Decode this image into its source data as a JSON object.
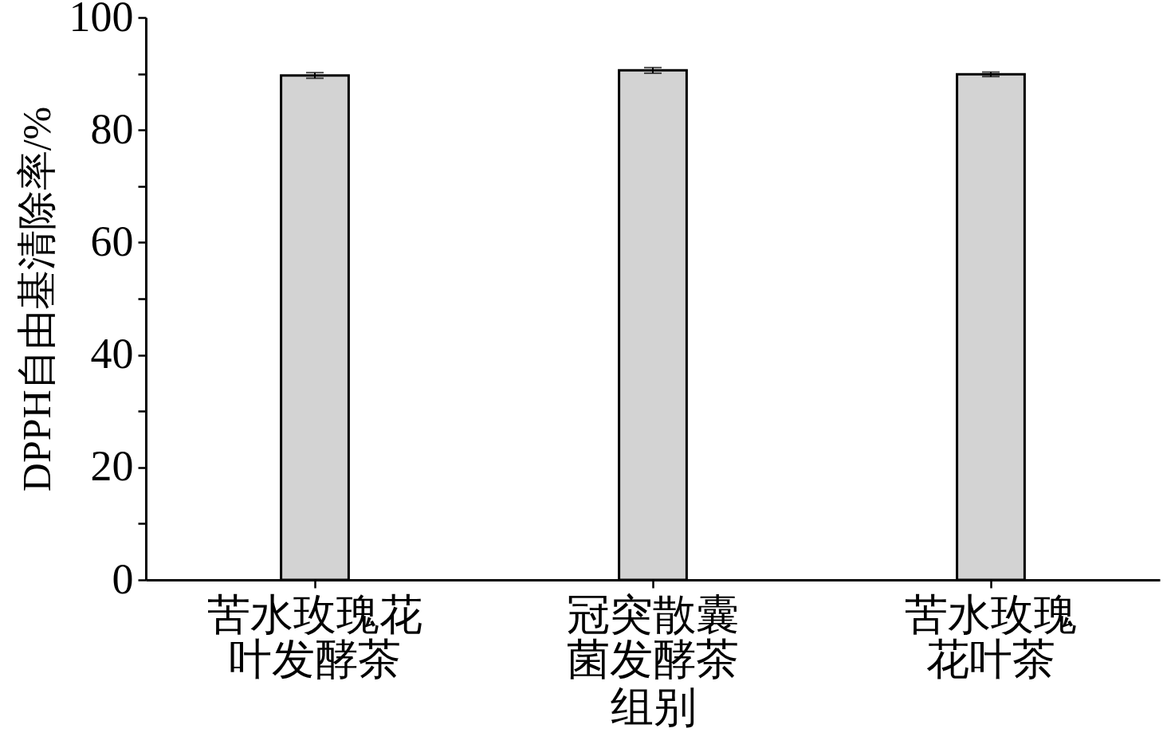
{
  "chart_data": {
    "type": "bar",
    "xlabel": "组别",
    "ylabel": "DPPH自由基清除率/%",
    "categories": [
      "苦水玫瑰花叶发酵茶",
      "冠突散囊菌发酵茶",
      "苦水玫瑰花叶茶"
    ],
    "values": [
      89.7,
      90.6,
      89.9
    ],
    "errors": [
      0.5,
      0.5,
      0.4
    ],
    "color": "#d3d3d3",
    "ylim": [
      0,
      100
    ],
    "yticks": [
      0,
      {
        "value": 10,
        "label": null
      },
      20,
      {
        "value": 30,
        "label": null
      },
      40,
      {
        "value": 50,
        "label": null
      },
      60,
      {
        "value": 70,
        "label": null
      },
      80,
      {
        "value": 90,
        "label": null
      },
      100
    ],
    "grid": false
  }
}
